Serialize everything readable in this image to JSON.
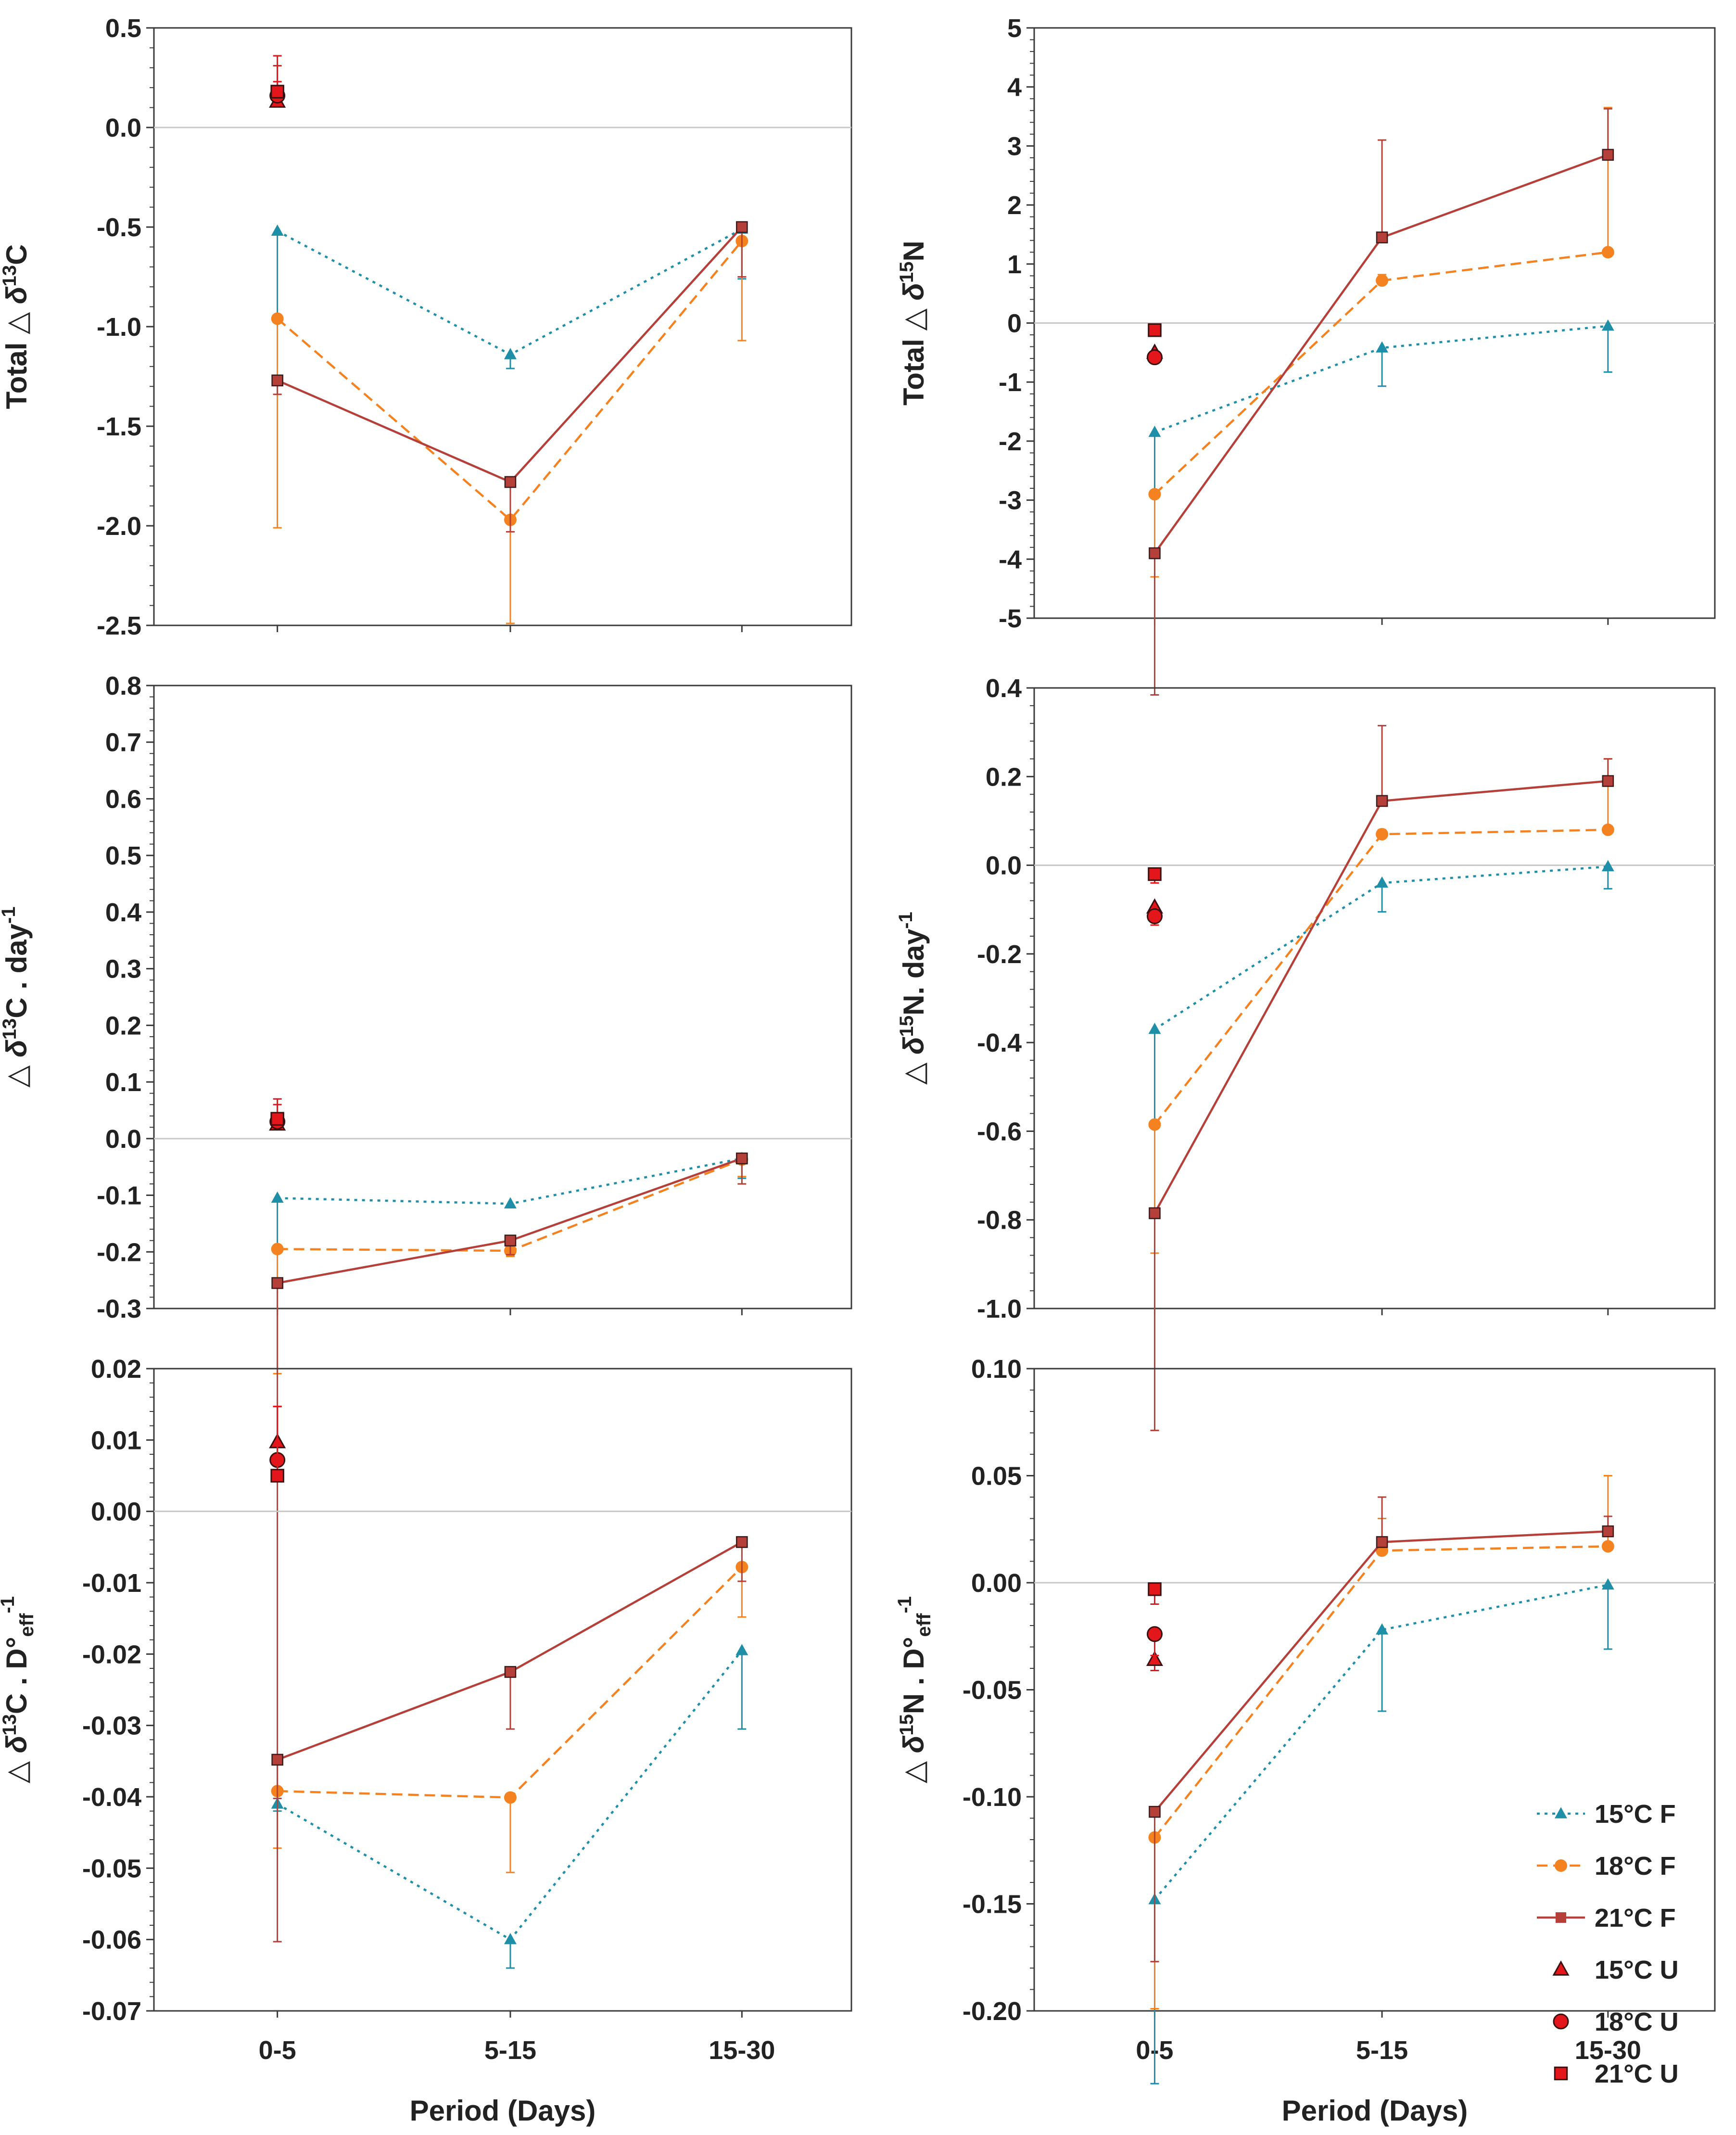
{
  "figure": {
    "xlabel": "Period (Days)"
  },
  "legend": [
    {
      "key": "15F",
      "label": "15°C F"
    },
    {
      "key": "18F",
      "label": "18°C F"
    },
    {
      "key": "21F",
      "label": "21°C F"
    },
    {
      "key": "15U",
      "label": "15°C U"
    },
    {
      "key": "18U",
      "label": "18°C U"
    },
    {
      "key": "21U",
      "label": "21°C U"
    }
  ],
  "series_style": {
    "15F": {
      "color": "#1f8fa8",
      "marker": "triangle",
      "dash": "dot",
      "line": true
    },
    "18F": {
      "color": "#f58220",
      "marker": "circle",
      "dash": "dash",
      "line": true
    },
    "21F": {
      "color": "#b5403a",
      "marker": "square",
      "dash": "solid",
      "line": true
    },
    "15U": {
      "color": "#e3161b",
      "marker": "triangle",
      "dash": "none",
      "line": false
    },
    "18U": {
      "color": "#e3161b",
      "marker": "circle",
      "dash": "none",
      "line": false
    },
    "21U": {
      "color": "#e3161b",
      "marker": "square",
      "dash": "none",
      "line": false
    }
  },
  "chart_data": [
    {
      "id": "c13-total",
      "type": "line",
      "ylabel": {
        "pre": "Total △ ",
        "sup": "13",
        "post": "C"
      },
      "categories": [
        "0-5",
        "5-15",
        "15-30"
      ],
      "ylim": [
        -2.5,
        0.5
      ],
      "ticks": [
        "-2.5",
        "-2.0",
        "-1.5",
        "-1.0",
        "-0.5",
        "0.0",
        "0.5"
      ],
      "series": [
        {
          "key": "15F",
          "values": [
            -0.52,
            -1.14,
            -0.51
          ],
          "err": [
            0.45,
            0.07,
            0.25
          ]
        },
        {
          "key": "18F",
          "values": [
            -0.96,
            -1.97,
            -0.57
          ],
          "err": [
            1.05,
            0.52,
            0.5
          ]
        },
        {
          "key": "21F",
          "values": [
            -1.27,
            -1.78,
            -0.5
          ],
          "err": [
            0.07,
            0.25,
            0.25
          ]
        },
        {
          "key": "15U",
          "values": [
            0.13,
            null,
            null
          ],
          "err": [
            0.1,
            null,
            null
          ]
        },
        {
          "key": "18U",
          "values": [
            0.16,
            null,
            null
          ],
          "err": [
            0.15,
            null,
            null
          ]
        },
        {
          "key": "21U",
          "values": [
            0.18,
            null,
            null
          ],
          "err": [
            0.18,
            null,
            null
          ]
        }
      ]
    },
    {
      "id": "n15-total",
      "type": "line",
      "ylabel": {
        "pre": "Total △ ",
        "sup": "15",
        "post": "N"
      },
      "categories": [
        "0-5",
        "5-15",
        "15-30"
      ],
      "ylim": [
        -5,
        5
      ],
      "ticks": [
        "-5",
        "-4",
        "-3",
        "-2",
        "-1",
        "0",
        "1",
        "2",
        "3",
        "4",
        "5"
      ],
      "series": [
        {
          "key": "15F",
          "values": [
            -1.85,
            -0.42,
            -0.05
          ],
          "err": [
            1.1,
            0.65,
            0.78
          ]
        },
        {
          "key": "18F",
          "values": [
            -2.9,
            0.72,
            1.2
          ],
          "err": [
            1.4,
            0.1,
            2.45
          ]
        },
        {
          "key": "21F",
          "values": [
            -3.9,
            1.45,
            2.85
          ],
          "err": [
            2.4,
            1.65,
            0.78
          ]
        },
        {
          "key": "15U",
          "values": [
            -0.5,
            null,
            null
          ],
          "err": [
            0.1,
            null,
            null
          ]
        },
        {
          "key": "18U",
          "values": [
            -0.58,
            null,
            null
          ],
          "err": [
            0.1,
            null,
            null
          ]
        },
        {
          "key": "21U",
          "values": [
            -0.12,
            null,
            null
          ],
          "err": [
            0.1,
            null,
            null
          ]
        }
      ]
    },
    {
      "id": "c13-day",
      "type": "line",
      "ylabel": {
        "pre": "△ ",
        "sup": "13",
        "post": "C . day-1",
        "post_main": "C . day",
        "post_sup": "-1"
      },
      "categories": [
        "0-5",
        "5-15",
        "15-30"
      ],
      "ylim": [
        -0.3,
        0.8
      ],
      "ticks": [
        "-0.3",
        "-0.2",
        "-0.1",
        "0.0",
        "0.1",
        "0.2",
        "0.3",
        "0.4",
        "0.5",
        "0.6",
        "0.7",
        "0.8"
      ],
      "series": [
        {
          "key": "15F",
          "values": [
            -0.105,
            -0.115,
            -0.035
          ],
          "err": [
            0.09,
            0.005,
            0.035
          ]
        },
        {
          "key": "18F",
          "values": [
            -0.195,
            -0.198,
            -0.037
          ],
          "err": [
            0.22,
            0.01,
            0.03
          ]
        },
        {
          "key": "21F",
          "values": [
            -0.255,
            -0.18,
            -0.035
          ],
          "err": [
            0.91,
            0.025,
            0.045
          ]
        },
        {
          "key": "15U",
          "values": [
            0.025,
            null,
            null
          ],
          "err": [
            0.02,
            null,
            null
          ]
        },
        {
          "key": "18U",
          "values": [
            0.03,
            null,
            null
          ],
          "err": [
            0.03,
            null,
            null
          ]
        },
        {
          "key": "21U",
          "values": [
            0.035,
            null,
            null
          ],
          "err": [
            0.035,
            null,
            null
          ]
        }
      ]
    },
    {
      "id": "n15-day",
      "type": "line",
      "ylabel": {
        "pre": "△ ",
        "sup": "15",
        "post": "N. day-1",
        "post_main": "N. day",
        "post_sup": "-1"
      },
      "categories": [
        "0-5",
        "5-15",
        "15-30"
      ],
      "ylim": [
        -1.0,
        0.4
      ],
      "ticks": [
        "-1.0",
        "-0.8",
        "-0.6",
        "-0.4",
        "-0.2",
        "0.0",
        "0.2",
        "0.4"
      ],
      "series": [
        {
          "key": "15F",
          "values": [
            -0.37,
            -0.04,
            -0.003
          ],
          "err": [
            0.215,
            0.065,
            0.05
          ]
        },
        {
          "key": "18F",
          "values": [
            -0.585,
            0.07,
            0.08
          ],
          "err": [
            0.29,
            0.01,
            0.16
          ]
        },
        {
          "key": "21F",
          "values": [
            -0.785,
            0.145,
            0.19
          ],
          "err": [
            0.49,
            0.17,
            0.05
          ]
        },
        {
          "key": "15U",
          "values": [
            -0.095,
            null,
            null
          ],
          "err": [
            0.02,
            null,
            null
          ]
        },
        {
          "key": "18U",
          "values": [
            -0.115,
            null,
            null
          ],
          "err": [
            0.02,
            null,
            null
          ]
        },
        {
          "key": "21U",
          "values": [
            -0.02,
            null,
            null
          ],
          "err": [
            0.02,
            null,
            null
          ]
        }
      ]
    },
    {
      "id": "c13-deff",
      "type": "line",
      "ylabel": {
        "pre": "△ ",
        "sup": "13",
        "post": "C . D°eff-1",
        "post_main": "C . D°",
        "post_sub": "eff",
        "post_sup": "-1"
      },
      "categories": [
        "0-5",
        "5-15",
        "15-30"
      ],
      "ylim": [
        -0.07,
        0.02
      ],
      "ticks": [
        "-0.07",
        "-0.06",
        "-0.05",
        "-0.04",
        "-0.03",
        "-0.02",
        "-0.01",
        "0.00",
        "0.01",
        "0.02"
      ],
      "series": [
        {
          "key": "15F",
          "values": [
            -0.041,
            -0.06,
            -0.0195
          ],
          "err": [
            0.001,
            0.004,
            0.011
          ]
        },
        {
          "key": "18F",
          "values": [
            -0.0392,
            -0.0401,
            -0.0078
          ],
          "err": [
            0.008,
            0.0105,
            0.007
          ]
        },
        {
          "key": "21F",
          "values": [
            -0.0348,
            -0.0225,
            -0.0043
          ],
          "err": [
            0.0255,
            0.008,
            0.0055
          ]
        },
        {
          "key": "15U",
          "values": [
            0.0097,
            null,
            null
          ],
          "err": [
            0.005,
            null,
            null
          ]
        },
        {
          "key": "18U",
          "values": [
            0.0072,
            null,
            null
          ],
          "err": [
            0.0075,
            null,
            null
          ]
        },
        {
          "key": "21U",
          "values": [
            0.005,
            null,
            null
          ],
          "err": [
            0.0097,
            null,
            null
          ]
        }
      ]
    },
    {
      "id": "n15-deff",
      "type": "line",
      "ylabel": {
        "pre": "△ ",
        "sup": "15",
        "post": "N . D°eff-1",
        "post_main": "N . D°",
        "post_sub": "eff",
        "post_sup": "-1"
      },
      "categories": [
        "0-5",
        "5-15",
        "15-30"
      ],
      "ylim": [
        -0.2,
        0.1
      ],
      "ticks": [
        "-0.20",
        "-0.15",
        "-0.10",
        "-0.05",
        "0.00",
        "0.05",
        "0.10"
      ],
      "series": [
        {
          "key": "15F",
          "values": [
            -0.148,
            -0.022,
            -0.001
          ],
          "err": [
            0.086,
            0.038,
            0.03
          ]
        },
        {
          "key": "18F",
          "values": [
            -0.119,
            0.015,
            0.017
          ],
          "err": [
            0.08,
            0.015,
            0.033
          ]
        },
        {
          "key": "21F",
          "values": [
            -0.107,
            0.019,
            0.024
          ],
          "err": [
            0.07,
            0.021,
            0.007
          ]
        },
        {
          "key": "15U",
          "values": [
            -0.036,
            null,
            null
          ],
          "err": [
            0.005,
            null,
            null
          ]
        },
        {
          "key": "18U",
          "values": [
            -0.024,
            null,
            null
          ],
          "err": [
            0.01,
            null,
            null
          ]
        },
        {
          "key": "21U",
          "values": [
            -0.003,
            null,
            null
          ],
          "err": [
            0.007,
            null,
            null
          ]
        }
      ]
    }
  ]
}
